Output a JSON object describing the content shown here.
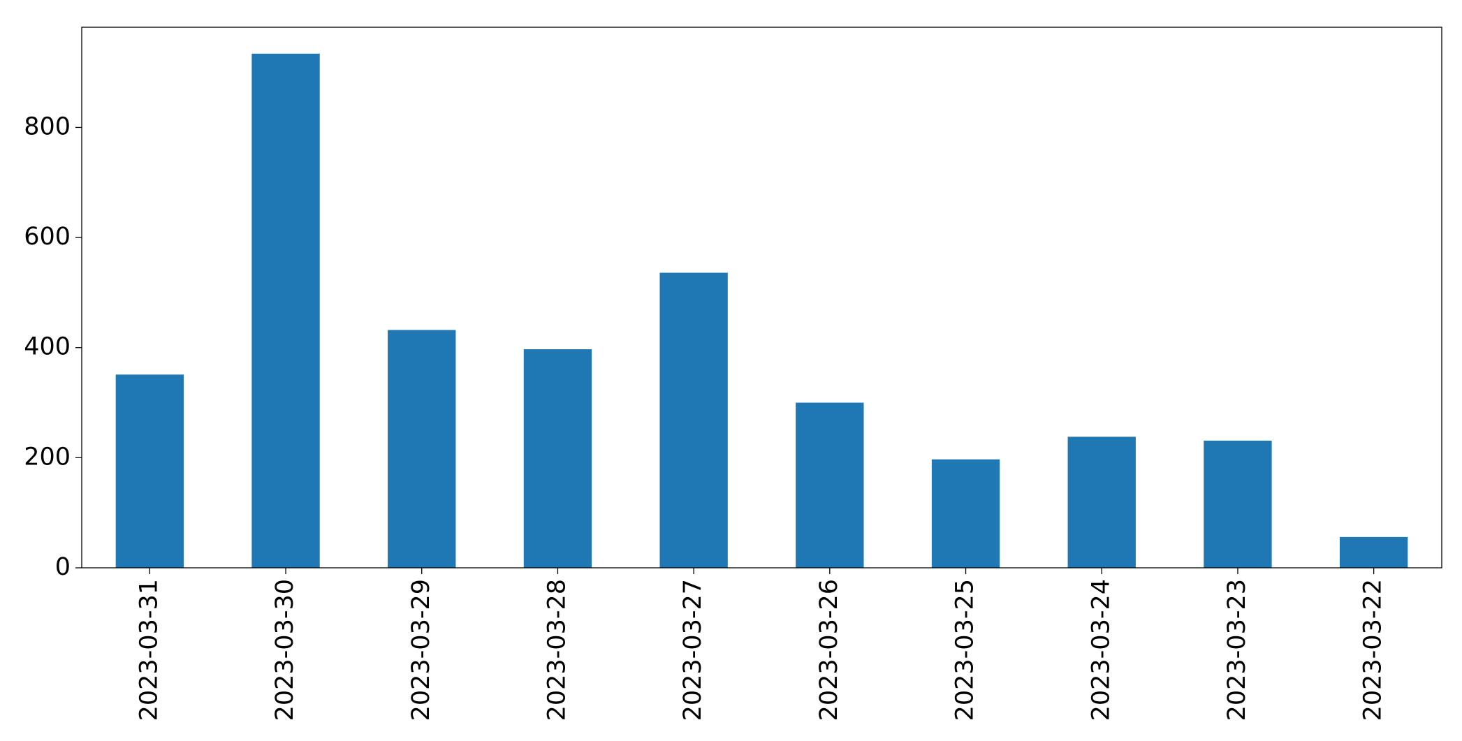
{
  "chart_data": {
    "type": "bar",
    "categories": [
      "2023-03-31",
      "2023-03-30",
      "2023-03-29",
      "2023-03-28",
      "2023-03-27",
      "2023-03-26",
      "2023-03-25",
      "2023-03-24",
      "2023-03-23",
      "2023-03-22"
    ],
    "values": [
      351,
      934,
      432,
      397,
      536,
      300,
      197,
      238,
      231,
      56
    ],
    "color": "#1f77b4",
    "ylim": [
      0,
      982
    ],
    "yticks": [
      0,
      200,
      400,
      600,
      800
    ],
    "grid": false
  }
}
